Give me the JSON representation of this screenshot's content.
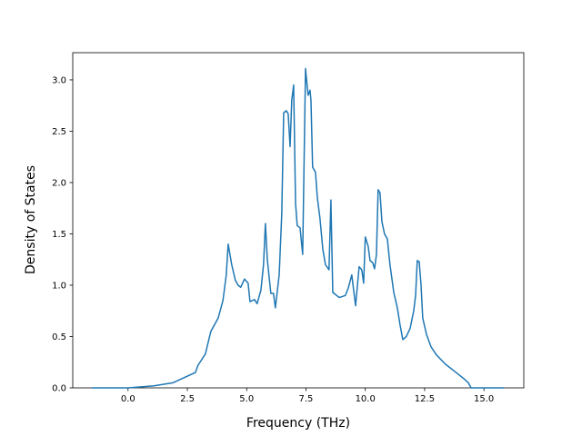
{
  "chart_data": {
    "type": "line",
    "xlabel": "Frequency (THz)",
    "ylabel": "Density of States",
    "xlim": [
      -2.33,
      16.68
    ],
    "ylim": [
      0,
      3.265
    ],
    "xticks": [
      {
        "value": 0,
        "label": "0.0"
      },
      {
        "value": 2.5,
        "label": "2.5"
      },
      {
        "value": 5,
        "label": "5.0"
      },
      {
        "value": 7.5,
        "label": "7.5"
      },
      {
        "value": 10,
        "label": "10.0"
      },
      {
        "value": 12.5,
        "label": "12.5"
      },
      {
        "value": 15,
        "label": "15.0"
      }
    ],
    "yticks": [
      {
        "value": 0,
        "label": "0.0"
      },
      {
        "value": 0.5,
        "label": "0.5"
      },
      {
        "value": 1,
        "label": "1.0"
      },
      {
        "value": 1.5,
        "label": "1.5"
      },
      {
        "value": 2,
        "label": "2.0"
      },
      {
        "value": 2.5,
        "label": "2.5"
      },
      {
        "value": 3,
        "label": "3.0"
      }
    ],
    "color": "#1f77b4",
    "x": [
      -1.53,
      0,
      1.1,
      1.9,
      2.84,
      2.95,
      3.26,
      3.49,
      3.8,
      4.0,
      4.14,
      4.22,
      4.37,
      4.52,
      4.64,
      4.75,
      4.91,
      5.06,
      5.14,
      5.33,
      5.44,
      5.6,
      5.71,
      5.79,
      5.87,
      6.02,
      6.13,
      6.21,
      6.37,
      6.48,
      6.56,
      6.67,
      6.75,
      6.83,
      6.9,
      6.98,
      7.06,
      7.13,
      7.25,
      7.36,
      7.48,
      7.59,
      7.67,
      7.71,
      7.78,
      7.9,
      7.98,
      8.09,
      8.21,
      8.32,
      8.47,
      8.55,
      8.63,
      8.9,
      9.16,
      9.28,
      9.43,
      9.59,
      9.74,
      9.85,
      9.93,
      10.0,
      10.12,
      10.2,
      10.31,
      10.39,
      10.47,
      10.54,
      10.62,
      10.7,
      10.81,
      10.93,
      11.04,
      11.2,
      11.35,
      11.46,
      11.58,
      11.73,
      11.89,
      12.04,
      12.12,
      12.19,
      12.27,
      12.35,
      12.42,
      12.58,
      12.77,
      13.0,
      13.38,
      13.77,
      14.15,
      14.34,
      14.46,
      15.84
    ],
    "values": [
      0,
      0,
      0.02,
      0.05,
      0.15,
      0.22,
      0.33,
      0.55,
      0.68,
      0.85,
      1.1,
      1.4,
      1.2,
      1.05,
      1.0,
      0.98,
      1.06,
      1.02,
      0.84,
      0.86,
      0.82,
      0.95,
      1.2,
      1.6,
      1.25,
      0.92,
      0.92,
      0.78,
      1.1,
      1.7,
      2.68,
      2.7,
      2.67,
      2.35,
      2.8,
      2.95,
      1.8,
      1.58,
      1.56,
      1.3,
      3.11,
      2.85,
      2.9,
      2.8,
      2.15,
      2.1,
      1.85,
      1.65,
      1.35,
      1.2,
      1.15,
      1.83,
      0.93,
      0.88,
      0.9,
      0.97,
      1.1,
      0.8,
      1.18,
      1.15,
      1.02,
      1.47,
      1.38,
      1.24,
      1.22,
      1.16,
      1.3,
      1.93,
      1.9,
      1.62,
      1.5,
      1.45,
      1.2,
      0.93,
      0.78,
      0.62,
      0.47,
      0.5,
      0.58,
      0.75,
      0.9,
      1.24,
      1.23,
      1.0,
      0.68,
      0.52,
      0.4,
      0.32,
      0.23,
      0.16,
      0.09,
      0.05,
      0,
      0
    ]
  }
}
